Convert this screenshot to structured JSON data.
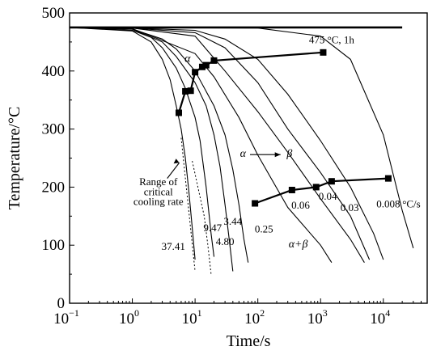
{
  "chart_data": {
    "type": "line",
    "xlabel": "Time/s",
    "ylabel": "Temperature/°C",
    "xscale": "log",
    "xlim": [
      0.1,
      50000
    ],
    "ylim": [
      0,
      500
    ],
    "x_ticks": [
      {
        "value": 0.1,
        "base": "10",
        "exp": "−1"
      },
      {
        "value": 1,
        "base": "10",
        "exp": "0"
      },
      {
        "value": 10,
        "base": "10",
        "exp": "1"
      },
      {
        "value": 100,
        "base": "10",
        "exp": "2"
      },
      {
        "value": 1000,
        "base": "10",
        "exp": "3"
      },
      {
        "value": 10000,
        "base": "10",
        "exp": "4"
      }
    ],
    "y_ticks": [
      0,
      100,
      200,
      300,
      400,
      500
    ],
    "isotherm": {
      "label": "475 °C, 1h",
      "x": [
        0.1,
        20000
      ],
      "y": [
        475,
        475
      ]
    },
    "cooling_curves": [
      {
        "label": "37.41",
        "points": [
          [
            0.1,
            475
          ],
          [
            1,
            469
          ],
          [
            2,
            450
          ],
          [
            3,
            420
          ],
          [
            4,
            385
          ],
          [
            5,
            340
          ],
          [
            6,
            300
          ],
          [
            7,
            250
          ],
          [
            8,
            190
          ],
          [
            9,
            130
          ],
          [
            10,
            75
          ]
        ]
      },
      {
        "label": "9.47",
        "points": [
          [
            0.1,
            475
          ],
          [
            1,
            470
          ],
          [
            2,
            458
          ],
          [
            3,
            440
          ],
          [
            5,
            405
          ],
          [
            7,
            370
          ],
          [
            10,
            320
          ],
          [
            12,
            280
          ],
          [
            15,
            200
          ],
          [
            18,
            120
          ],
          [
            20,
            80
          ]
        ]
      },
      {
        "label": "4.80",
        "points": [
          [
            0.1,
            475
          ],
          [
            1,
            472
          ],
          [
            3,
            450
          ],
          [
            5,
            425
          ],
          [
            10,
            380
          ],
          [
            15,
            340
          ],
          [
            20,
            290
          ],
          [
            25,
            235
          ],
          [
            30,
            170
          ],
          [
            35,
            110
          ],
          [
            40,
            55
          ]
        ]
      },
      {
        "label": "3.44",
        "points": [
          [
            0.1,
            475
          ],
          [
            1,
            472
          ],
          [
            3,
            455
          ],
          [
            5,
            438
          ],
          [
            10,
            400
          ],
          [
            20,
            340
          ],
          [
            30,
            290
          ],
          [
            40,
            230
          ],
          [
            50,
            170
          ],
          [
            60,
            110
          ],
          [
            70,
            70
          ]
        ]
      },
      {
        "label": "0.25",
        "points": [
          [
            0.1,
            475
          ],
          [
            1,
            473
          ],
          [
            10,
            430
          ],
          [
            20,
            390
          ],
          [
            50,
            320
          ],
          [
            100,
            255
          ],
          [
            300,
            165
          ],
          [
            1000,
            100
          ],
          [
            1500,
            70
          ]
        ]
      },
      {
        "label": "0.06",
        "points": [
          [
            0.1,
            475
          ],
          [
            1,
            474
          ],
          [
            10,
            460
          ],
          [
            30,
            400
          ],
          [
            100,
            330
          ],
          [
            300,
            260
          ],
          [
            1000,
            180
          ],
          [
            3000,
            110
          ],
          [
            5000,
            70
          ]
        ]
      },
      {
        "label": "0.04",
        "points": [
          [
            0.1,
            475
          ],
          [
            1,
            474
          ],
          [
            10,
            466
          ],
          [
            30,
            440
          ],
          [
            100,
            380
          ],
          [
            300,
            300
          ],
          [
            1000,
            225
          ],
          [
            3000,
            150
          ],
          [
            6000,
            75
          ]
        ]
      },
      {
        "label": "0.03",
        "points": [
          [
            0.1,
            475
          ],
          [
            1,
            474
          ],
          [
            10,
            470
          ],
          [
            30,
            455
          ],
          [
            100,
            420
          ],
          [
            300,
            360
          ],
          [
            1000,
            280
          ],
          [
            3000,
            200
          ],
          [
            7000,
            120
          ],
          [
            10000,
            75
          ]
        ]
      },
      {
        "label": "0.008",
        "points": [
          [
            0.1,
            475
          ],
          [
            100,
            474
          ],
          [
            1000,
            460
          ],
          [
            3000,
            420
          ],
          [
            10000,
            290
          ],
          [
            20000,
            160
          ],
          [
            30000,
            95
          ]
        ]
      }
    ],
    "alpha_start_line": {
      "points": [
        [
          5.5,
          328
        ],
        [
          7,
          365
        ],
        [
          8.5,
          366
        ],
        [
          10,
          398
        ],
        [
          13,
          407
        ],
        [
          15,
          410
        ],
        [
          20,
          418
        ],
        [
          1100,
          432
        ]
      ]
    },
    "alpha_beta_line": {
      "points": [
        [
          90,
          172
        ],
        [
          350,
          195
        ],
        [
          850,
          200
        ],
        [
          1500,
          210
        ],
        [
          12000,
          215
        ]
      ]
    },
    "critical_range": {
      "left": [
        [
          6,
          285
        ],
        [
          10,
          55
        ]
      ],
      "right": [
        [
          9,
          245
        ],
        [
          14,
          150
        ],
        [
          16,
          100
        ],
        [
          18,
          50
        ]
      ]
    },
    "annotations": {
      "alpha_top": "α",
      "alpha_to_beta_left": "α",
      "alpha_to_beta_right": "β",
      "alpha_plus_beta": "α+β",
      "range_line1": "Range of",
      "range_line2": "critical",
      "range_line3": "cooling rate",
      "unit": "°C/s"
    }
  }
}
